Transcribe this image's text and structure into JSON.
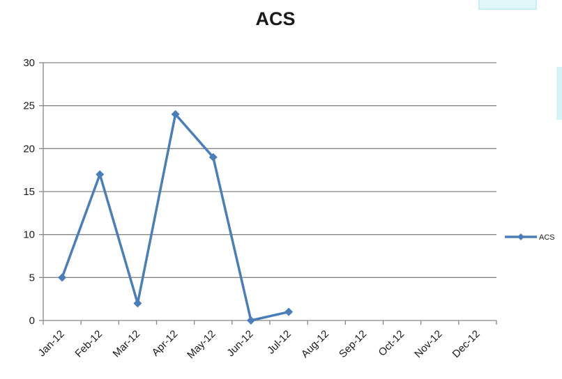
{
  "chart_data": {
    "type": "line",
    "title": "ACS",
    "xlabel": "",
    "ylabel": "",
    "categories": [
      "Jan-12",
      "Feb-12",
      "Mar-12",
      "Apr-12",
      "May-12",
      "Jun-12",
      "Jul-12",
      "Aug-12",
      "Sep-12",
      "Oct-12",
      "Nov-12",
      "Dec-12"
    ],
    "series": [
      {
        "name": "ACS",
        "values": [
          5,
          17,
          2,
          24,
          19,
          0,
          1,
          null,
          null,
          null,
          null,
          null
        ]
      }
    ],
    "ylim": [
      0,
      30
    ],
    "yticks": [
      0,
      5,
      10,
      15,
      20,
      25,
      30
    ],
    "grid": true,
    "legend": "right",
    "colors": {
      "series": "#4a7ebb",
      "grid": "#868686",
      "axis": "#868686"
    }
  }
}
